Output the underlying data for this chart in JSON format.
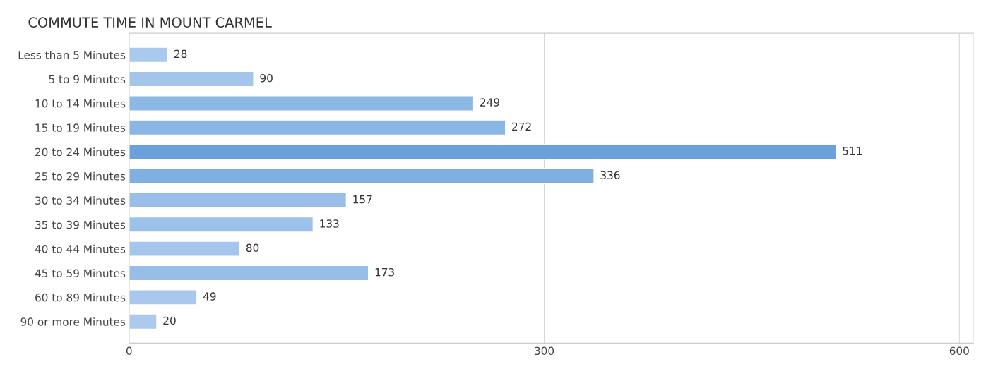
{
  "chart_data": {
    "type": "bar",
    "orientation": "horizontal",
    "title": "COMMUTE TIME IN MOUNT CARMEL",
    "categories": [
      "Less than 5 Minutes",
      "5 to 9 Minutes",
      "10 to 14 Minutes",
      "15 to 19 Minutes",
      "20 to 24 Minutes",
      "25 to 29 Minutes",
      "30 to 34 Minutes",
      "35 to 39 Minutes",
      "40 to 44 Minutes",
      "45 to 59 Minutes",
      "60 to 89 Minutes",
      "90 or more Minutes"
    ],
    "values": [
      28,
      90,
      249,
      272,
      511,
      336,
      157,
      133,
      80,
      173,
      49,
      20
    ],
    "colors": [
      "#aac9ee",
      "#a3c5ec",
      "#8db8e6",
      "#8ab6e5",
      "#6aa0dc",
      "#80afe2",
      "#99bfe9",
      "#9cc1ea",
      "#a5c6ec",
      "#97bee8",
      "#a8c8ed",
      "#acc9ee"
    ],
    "xlim": [
      0,
      610
    ],
    "xticks": [
      0,
      300,
      600
    ],
    "grid": "x",
    "data_labels": true
  }
}
